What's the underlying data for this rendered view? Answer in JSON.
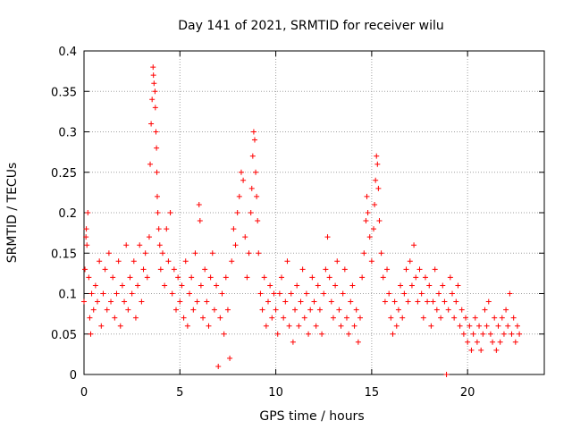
{
  "chart_data": {
    "type": "scatter",
    "title": "Day 141 of 2021, SRMTID for receiver wilu",
    "xlabel": "GPS time / hours",
    "ylabel": "SRMTID / TECUs",
    "xlim": [
      0,
      24
    ],
    "ylim": [
      0,
      0.4
    ],
    "x_ticks": [
      0,
      5,
      10,
      15,
      20
    ],
    "x_tick_labels": [
      "0",
      "5",
      "10",
      "15",
      "20"
    ],
    "y_ticks": [
      0,
      0.05,
      0.1,
      0.15,
      0.2,
      0.25,
      0.3,
      0.35,
      0.4
    ],
    "y_tick_labels": [
      "0",
      "0.05",
      "0.1",
      "0.15",
      "0.2",
      "0.25",
      "0.3",
      "0.35",
      "0.4"
    ],
    "grid": true,
    "marker": "+",
    "series": [
      {
        "name": "SRMTID",
        "color": "#ff0000",
        "points": [
          [
            0.0,
            0.09
          ],
          [
            0.05,
            0.13
          ],
          [
            0.1,
            0.17
          ],
          [
            0.12,
            0.18
          ],
          [
            0.15,
            0.16
          ],
          [
            0.2,
            0.2
          ],
          [
            0.25,
            0.12
          ],
          [
            0.3,
            0.07
          ],
          [
            0.35,
            0.05
          ],
          [
            0.4,
            0.1
          ],
          [
            0.5,
            0.08
          ],
          [
            0.6,
            0.11
          ],
          [
            0.7,
            0.09
          ],
          [
            0.8,
            0.14
          ],
          [
            0.9,
            0.06
          ],
          [
            1.0,
            0.1
          ],
          [
            1.1,
            0.13
          ],
          [
            1.2,
            0.08
          ],
          [
            1.3,
            0.15
          ],
          [
            1.4,
            0.09
          ],
          [
            1.5,
            0.12
          ],
          [
            1.6,
            0.07
          ],
          [
            1.7,
            0.1
          ],
          [
            1.8,
            0.14
          ],
          [
            1.9,
            0.06
          ],
          [
            2.0,
            0.11
          ],
          [
            2.1,
            0.09
          ],
          [
            2.2,
            0.16
          ],
          [
            2.3,
            0.08
          ],
          [
            2.4,
            0.12
          ],
          [
            2.5,
            0.1
          ],
          [
            2.6,
            0.14
          ],
          [
            2.7,
            0.07
          ],
          [
            2.8,
            0.11
          ],
          [
            2.9,
            0.16
          ],
          [
            3.0,
            0.09
          ],
          [
            3.1,
            0.13
          ],
          [
            3.2,
            0.15
          ],
          [
            3.3,
            0.12
          ],
          [
            3.4,
            0.17
          ],
          [
            3.45,
            0.26
          ],
          [
            3.5,
            0.31
          ],
          [
            3.55,
            0.34
          ],
          [
            3.6,
            0.38
          ],
          [
            3.62,
            0.37
          ],
          [
            3.65,
            0.36
          ],
          [
            3.7,
            0.35
          ],
          [
            3.72,
            0.33
          ],
          [
            3.75,
            0.3
          ],
          [
            3.78,
            0.28
          ],
          [
            3.8,
            0.25
          ],
          [
            3.82,
            0.22
          ],
          [
            3.85,
            0.2
          ],
          [
            3.9,
            0.18
          ],
          [
            3.95,
            0.16
          ],
          [
            4.0,
            0.13
          ],
          [
            4.1,
            0.15
          ],
          [
            4.2,
            0.11
          ],
          [
            4.3,
            0.18
          ],
          [
            4.4,
            0.14
          ],
          [
            4.5,
            0.2
          ],
          [
            4.6,
            0.1
          ],
          [
            4.7,
            0.13
          ],
          [
            4.8,
            0.08
          ],
          [
            4.9,
            0.12
          ],
          [
            5.0,
            0.09
          ],
          [
            5.1,
            0.11
          ],
          [
            5.2,
            0.07
          ],
          [
            5.3,
            0.14
          ],
          [
            5.4,
            0.06
          ],
          [
            5.5,
            0.1
          ],
          [
            5.6,
            0.12
          ],
          [
            5.7,
            0.08
          ],
          [
            5.8,
            0.15
          ],
          [
            5.9,
            0.09
          ],
          [
            6.0,
            0.21
          ],
          [
            6.05,
            0.19
          ],
          [
            6.1,
            0.11
          ],
          [
            6.2,
            0.07
          ],
          [
            6.3,
            0.13
          ],
          [
            6.4,
            0.09
          ],
          [
            6.5,
            0.06
          ],
          [
            6.6,
            0.12
          ],
          [
            6.7,
            0.15
          ],
          [
            6.8,
            0.08
          ],
          [
            6.9,
            0.11
          ],
          [
            7.0,
            0.01
          ],
          [
            7.1,
            0.07
          ],
          [
            7.2,
            0.1
          ],
          [
            7.3,
            0.05
          ],
          [
            7.4,
            0.12
          ],
          [
            7.5,
            0.08
          ],
          [
            7.6,
            0.02
          ],
          [
            7.7,
            0.14
          ],
          [
            7.8,
            0.18
          ],
          [
            7.9,
            0.16
          ],
          [
            8.0,
            0.2
          ],
          [
            8.1,
            0.22
          ],
          [
            8.2,
            0.25
          ],
          [
            8.3,
            0.24
          ],
          [
            8.4,
            0.17
          ],
          [
            8.5,
            0.12
          ],
          [
            8.6,
            0.15
          ],
          [
            8.7,
            0.2
          ],
          [
            8.75,
            0.23
          ],
          [
            8.8,
            0.27
          ],
          [
            8.85,
            0.3
          ],
          [
            8.9,
            0.29
          ],
          [
            8.95,
            0.25
          ],
          [
            9.0,
            0.22
          ],
          [
            9.05,
            0.19
          ],
          [
            9.1,
            0.15
          ],
          [
            9.2,
            0.1
          ],
          [
            9.3,
            0.08
          ],
          [
            9.4,
            0.12
          ],
          [
            9.5,
            0.06
          ],
          [
            9.6,
            0.09
          ],
          [
            9.7,
            0.11
          ],
          [
            9.8,
            0.07
          ],
          [
            9.9,
            0.1
          ],
          [
            10.0,
            0.08
          ],
          [
            10.1,
            0.05
          ],
          [
            10.2,
            0.1
          ],
          [
            10.3,
            0.12
          ],
          [
            10.4,
            0.07
          ],
          [
            10.5,
            0.09
          ],
          [
            10.6,
            0.14
          ],
          [
            10.7,
            0.06
          ],
          [
            10.8,
            0.1
          ],
          [
            10.9,
            0.04
          ],
          [
            11.0,
            0.08
          ],
          [
            11.1,
            0.11
          ],
          [
            11.2,
            0.06
          ],
          [
            11.3,
            0.09
          ],
          [
            11.4,
            0.13
          ],
          [
            11.5,
            0.07
          ],
          [
            11.6,
            0.1
          ],
          [
            11.7,
            0.05
          ],
          [
            11.8,
            0.08
          ],
          [
            11.9,
            0.12
          ],
          [
            12.0,
            0.09
          ],
          [
            12.1,
            0.06
          ],
          [
            12.2,
            0.11
          ],
          [
            12.3,
            0.08
          ],
          [
            12.4,
            0.05
          ],
          [
            12.5,
            0.1
          ],
          [
            12.6,
            0.13
          ],
          [
            12.7,
            0.17
          ],
          [
            12.8,
            0.12
          ],
          [
            12.9,
            0.09
          ],
          [
            13.0,
            0.07
          ],
          [
            13.1,
            0.11
          ],
          [
            13.2,
            0.14
          ],
          [
            13.3,
            0.08
          ],
          [
            13.4,
            0.06
          ],
          [
            13.5,
            0.1
          ],
          [
            13.6,
            0.13
          ],
          [
            13.7,
            0.07
          ],
          [
            13.8,
            0.05
          ],
          [
            13.9,
            0.09
          ],
          [
            14.0,
            0.11
          ],
          [
            14.1,
            0.06
          ],
          [
            14.2,
            0.08
          ],
          [
            14.3,
            0.04
          ],
          [
            14.4,
            0.07
          ],
          [
            14.5,
            0.12
          ],
          [
            14.6,
            0.15
          ],
          [
            14.7,
            0.19
          ],
          [
            14.75,
            0.22
          ],
          [
            14.8,
            0.2
          ],
          [
            14.9,
            0.17
          ],
          [
            15.0,
            0.14
          ],
          [
            15.1,
            0.18
          ],
          [
            15.15,
            0.21
          ],
          [
            15.2,
            0.24
          ],
          [
            15.25,
            0.27
          ],
          [
            15.3,
            0.26
          ],
          [
            15.35,
            0.23
          ],
          [
            15.4,
            0.19
          ],
          [
            15.5,
            0.15
          ],
          [
            15.6,
            0.12
          ],
          [
            15.7,
            0.09
          ],
          [
            15.8,
            0.13
          ],
          [
            15.9,
            0.1
          ],
          [
            16.0,
            0.07
          ],
          [
            16.1,
            0.05
          ],
          [
            16.2,
            0.09
          ],
          [
            16.3,
            0.06
          ],
          [
            16.4,
            0.08
          ],
          [
            16.5,
            0.11
          ],
          [
            16.6,
            0.07
          ],
          [
            16.7,
            0.1
          ],
          [
            16.8,
            0.13
          ],
          [
            16.9,
            0.09
          ],
          [
            17.0,
            0.14
          ],
          [
            17.1,
            0.11
          ],
          [
            17.2,
            0.16
          ],
          [
            17.3,
            0.12
          ],
          [
            17.4,
            0.09
          ],
          [
            17.5,
            0.13
          ],
          [
            17.6,
            0.1
          ],
          [
            17.7,
            0.07
          ],
          [
            17.8,
            0.12
          ],
          [
            17.9,
            0.09
          ],
          [
            18.0,
            0.11
          ],
          [
            18.1,
            0.06
          ],
          [
            18.2,
            0.09
          ],
          [
            18.3,
            0.13
          ],
          [
            18.4,
            0.08
          ],
          [
            18.5,
            0.1
          ],
          [
            18.6,
            0.07
          ],
          [
            18.7,
            0.11
          ],
          [
            18.8,
            0.09
          ],
          [
            18.9,
            0.0
          ],
          [
            19.0,
            0.08
          ],
          [
            19.1,
            0.12
          ],
          [
            19.2,
            0.1
          ],
          [
            19.3,
            0.07
          ],
          [
            19.4,
            0.09
          ],
          [
            19.5,
            0.11
          ],
          [
            19.6,
            0.06
          ],
          [
            19.7,
            0.08
          ],
          [
            19.8,
            0.05
          ],
          [
            19.9,
            0.07
          ],
          [
            20.0,
            0.04
          ],
          [
            20.1,
            0.06
          ],
          [
            20.2,
            0.03
          ],
          [
            20.3,
            0.05
          ],
          [
            20.4,
            0.07
          ],
          [
            20.5,
            0.04
          ],
          [
            20.6,
            0.06
          ],
          [
            20.7,
            0.03
          ],
          [
            20.8,
            0.05
          ],
          [
            20.9,
            0.08
          ],
          [
            21.0,
            0.06
          ],
          [
            21.1,
            0.09
          ],
          [
            21.2,
            0.05
          ],
          [
            21.3,
            0.04
          ],
          [
            21.4,
            0.07
          ],
          [
            21.5,
            0.03
          ],
          [
            21.6,
            0.06
          ],
          [
            21.7,
            0.04
          ],
          [
            21.8,
            0.07
          ],
          [
            21.9,
            0.05
          ],
          [
            22.0,
            0.08
          ],
          [
            22.1,
            0.06
          ],
          [
            22.2,
            0.1
          ],
          [
            22.3,
            0.05
          ],
          [
            22.4,
            0.07
          ],
          [
            22.5,
            0.04
          ],
          [
            22.6,
            0.06
          ],
          [
            22.7,
            0.05
          ]
        ]
      }
    ]
  }
}
